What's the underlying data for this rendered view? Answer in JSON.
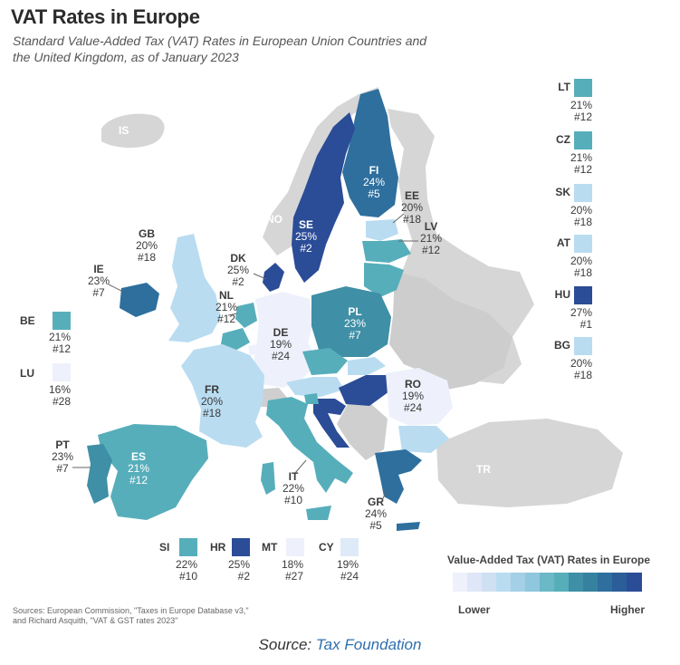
{
  "title": "VAT Rates in Europe",
  "subtitle_line1": "Standard Value-Added Tax (VAT) Rates in European Union Countries and",
  "subtitle_line2": "the United Kingdom, as of January 2023",
  "colors": {
    "lowest": "#eef1fb",
    "low": "#b9dcf1",
    "mid_light": "#8fc7de",
    "mid": "#57aebb",
    "mid_dark": "#3f8fa6",
    "dark": "#2e6f9e",
    "highest": "#2b4c96",
    "non_eu": "#d3d3d3"
  },
  "countries": [
    {
      "code": "IS",
      "rate": "",
      "rank": ""
    },
    {
      "code": "NO",
      "rate": "",
      "rank": ""
    },
    {
      "code": "TR",
      "rate": "",
      "rank": ""
    },
    {
      "code": "FI",
      "rate": "24%",
      "rank": "#5"
    },
    {
      "code": "SE",
      "rate": "25%",
      "rank": "#2"
    },
    {
      "code": "EE",
      "rate": "20%",
      "rank": "#18"
    },
    {
      "code": "LV",
      "rate": "21%",
      "rank": "#12"
    },
    {
      "code": "GB",
      "rate": "20%",
      "rank": "#18"
    },
    {
      "code": "DK",
      "rate": "25%",
      "rank": "#2"
    },
    {
      "code": "IE",
      "rate": "23%",
      "rank": "#7"
    },
    {
      "code": "NL",
      "rate": "21%",
      "rank": "#12"
    },
    {
      "code": "PL",
      "rate": "23%",
      "rank": "#7"
    },
    {
      "code": "DE",
      "rate": "19%",
      "rank": "#24"
    },
    {
      "code": "FR",
      "rate": "20%",
      "rank": "#18"
    },
    {
      "code": "RO",
      "rate": "19%",
      "rank": "#24"
    },
    {
      "code": "PT",
      "rate": "23%",
      "rank": "#7"
    },
    {
      "code": "ES",
      "rate": "21%",
      "rank": "#12"
    },
    {
      "code": "IT",
      "rate": "22%",
      "rank": "#10"
    },
    {
      "code": "GR",
      "rate": "24%",
      "rank": "#5"
    }
  ],
  "side_right": [
    {
      "code": "LT",
      "rate": "21%",
      "rank": "#12"
    },
    {
      "code": "CZ",
      "rate": "21%",
      "rank": "#12"
    },
    {
      "code": "SK",
      "rate": "20%",
      "rank": "#18"
    },
    {
      "code": "AT",
      "rate": "20%",
      "rank": "#18"
    },
    {
      "code": "HU",
      "rate": "27%",
      "rank": "#1"
    },
    {
      "code": "BG",
      "rate": "20%",
      "rank": "#18"
    }
  ],
  "side_left": [
    {
      "code": "BE",
      "rate": "21%",
      "rank": "#12"
    },
    {
      "code": "LU",
      "rate": "16%",
      "rank": "#28"
    }
  ],
  "bottom_row": [
    {
      "code": "SI",
      "rate": "22%",
      "rank": "#10"
    },
    {
      "code": "HR",
      "rate": "25%",
      "rank": "#2"
    },
    {
      "code": "MT",
      "rate": "18%",
      "rank": "#27"
    },
    {
      "code": "CY",
      "rate": "19%",
      "rank": "#24"
    }
  ],
  "legend": {
    "title": "Value-Added Tax (VAT) Rates in Europe",
    "lower": "Lower",
    "higher": "Higher",
    "steps": [
      "#eef1fb",
      "#dfe6f7",
      "#cfe0f3",
      "#b9dcf1",
      "#a3d0e6",
      "#8fc7de",
      "#6bb8c7",
      "#57aebb",
      "#3f8fa6",
      "#36819f",
      "#2e6f9e",
      "#2b5d98",
      "#2b4c96"
    ]
  },
  "sources_line1": "Sources: European Commission, \"Taxes in Europe Database v3,\"",
  "sources_line2": "and Richard Asquith, \"VAT & GST rates 2023\"",
  "source_prefix": "Source: ",
  "source_link": "Tax Foundation"
}
